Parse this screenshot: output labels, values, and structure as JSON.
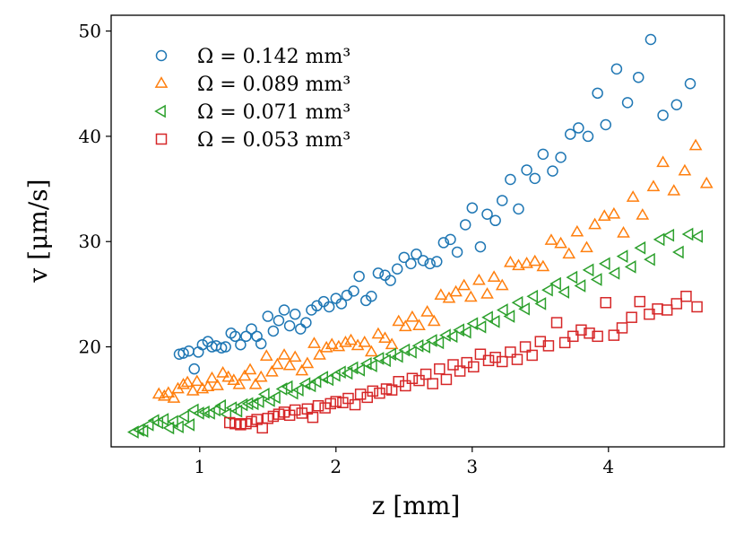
{
  "chart_data": {
    "type": "scatter",
    "title": "",
    "xlabel": "z [mm]",
    "ylabel": "v [μm/s]",
    "xlim": [
      0.35,
      4.85
    ],
    "ylim": [
      10.5,
      51.5
    ],
    "x_ticks": [
      {
        "value": 1,
        "label": "1"
      },
      {
        "value": 2,
        "label": "2"
      },
      {
        "value": 3,
        "label": "3"
      },
      {
        "value": 4,
        "label": "4"
      }
    ],
    "y_ticks": [
      {
        "value": 20,
        "label": "20"
      },
      {
        "value": 30,
        "label": "30"
      },
      {
        "value": 40,
        "label": "40"
      },
      {
        "value": 50,
        "label": "50"
      }
    ],
    "grid": false,
    "legend_position": "top-left",
    "series": [
      {
        "name": "Ω = 0.142 mm³",
        "marker": "circle",
        "color": "#1f77b4",
        "x": [
          0.85,
          0.88,
          0.92,
          0.96,
          0.99,
          1.02,
          1.06,
          1.09,
          1.12,
          1.16,
          1.19,
          1.23,
          1.26,
          1.3,
          1.34,
          1.38,
          1.42,
          1.45,
          1.5,
          1.54,
          1.58,
          1.62,
          1.66,
          1.7,
          1.74,
          1.78,
          1.82,
          1.86,
          1.91,
          1.95,
          2.0,
          2.04,
          2.08,
          2.13,
          2.17,
          2.22,
          2.26,
          2.31,
          2.36,
          2.4,
          2.45,
          2.5,
          2.55,
          2.59,
          2.64,
          2.69,
          2.74,
          2.79,
          2.84,
          2.89,
          2.95,
          3.0,
          3.06,
          3.11,
          3.17,
          3.22,
          3.28,
          3.34,
          3.4,
          3.46,
          3.52,
          3.59,
          3.65,
          3.72,
          3.78,
          3.85,
          3.92,
          3.98,
          4.06,
          4.14,
          4.22,
          4.31,
          4.4,
          4.5,
          4.6
        ],
        "values": [
          19.3,
          19.4,
          19.6,
          17.9,
          19.5,
          20.2,
          20.5,
          20.0,
          20.1,
          19.9,
          20.0,
          21.3,
          21.0,
          20.2,
          21.0,
          21.7,
          21.0,
          20.3,
          22.9,
          21.5,
          22.5,
          23.5,
          22.0,
          23.1,
          21.7,
          22.3,
          23.5,
          23.9,
          24.3,
          23.8,
          24.6,
          24.1,
          24.9,
          25.3,
          26.7,
          24.4,
          24.8,
          27.0,
          26.8,
          26.3,
          27.4,
          28.5,
          27.9,
          28.8,
          28.2,
          27.9,
          28.1,
          29.9,
          30.2,
          29.0,
          31.6,
          33.2,
          29.5,
          32.6,
          32.0,
          33.9,
          35.9,
          33.1,
          36.8,
          36.0,
          38.3,
          36.7,
          38.0,
          40.2,
          40.8,
          40.0,
          44.1,
          41.1,
          46.4,
          43.2,
          45.6,
          49.2,
          42.0,
          43.0,
          45.0
        ]
      },
      {
        "name": "Ω = 0.089 mm³",
        "marker": "triangle-up",
        "color": "#ff7f0e",
        "x": [
          0.7,
          0.74,
          0.77,
          0.81,
          0.84,
          0.88,
          0.91,
          0.95,
          0.98,
          1.02,
          1.06,
          1.09,
          1.13,
          1.17,
          1.21,
          1.25,
          1.29,
          1.33,
          1.37,
          1.41,
          1.45,
          1.49,
          1.53,
          1.57,
          1.62,
          1.66,
          1.7,
          1.75,
          1.79,
          1.84,
          1.88,
          1.93,
          1.97,
          2.02,
          2.07,
          2.11,
          2.16,
          2.21,
          2.26,
          2.31,
          2.36,
          2.41,
          2.46,
          2.51,
          2.56,
          2.61,
          2.67,
          2.72,
          2.77,
          2.83,
          2.88,
          2.94,
          2.99,
          3.05,
          3.11,
          3.16,
          3.22,
          3.28,
          3.34,
          3.4,
          3.46,
          3.52,
          3.58,
          3.65,
          3.71,
          3.77,
          3.84,
          3.9,
          3.97,
          4.04,
          4.11,
          4.18,
          4.25,
          4.33,
          4.4,
          4.48,
          4.56,
          4.64,
          4.72
        ],
        "values": [
          15.5,
          15.3,
          15.6,
          15.1,
          16.0,
          16.4,
          16.6,
          15.8,
          16.7,
          16.0,
          16.2,
          17.0,
          16.3,
          17.5,
          17.1,
          16.8,
          16.4,
          17.2,
          17.8,
          16.4,
          17.1,
          19.1,
          17.6,
          18.3,
          19.2,
          18.2,
          19.0,
          17.7,
          18.4,
          20.3,
          19.2,
          19.9,
          20.2,
          20.0,
          20.4,
          20.6,
          20.1,
          20.4,
          19.5,
          21.2,
          20.8,
          20.2,
          22.4,
          21.9,
          22.8,
          22.0,
          23.3,
          22.4,
          24.9,
          24.6,
          25.2,
          25.8,
          24.7,
          26.3,
          25.0,
          26.6,
          25.8,
          28.0,
          27.7,
          27.9,
          28.1,
          27.6,
          30.1,
          29.8,
          28.8,
          30.9,
          29.4,
          31.6,
          32.4,
          32.6,
          30.8,
          34.2,
          32.5,
          35.2,
          37.5,
          34.8,
          36.7,
          39.1,
          35.5
        ]
      },
      {
        "name": "Ω = 0.071 mm³",
        "marker": "triangle-left",
        "color": "#2ca02c",
        "x": [
          0.52,
          0.56,
          0.59,
          0.63,
          0.67,
          0.7,
          0.74,
          0.78,
          0.81,
          0.85,
          0.89,
          0.93,
          0.96,
          1.0,
          1.04,
          1.08,
          1.12,
          1.16,
          1.2,
          1.24,
          1.28,
          1.32,
          1.36,
          1.4,
          1.44,
          1.48,
          1.52,
          1.56,
          1.61,
          1.65,
          1.69,
          1.73,
          1.78,
          1.82,
          1.86,
          1.91,
          1.95,
          2.0,
          2.04,
          2.09,
          2.13,
          2.18,
          2.23,
          2.27,
          2.32,
          2.37,
          2.41,
          2.46,
          2.51,
          2.56,
          2.61,
          2.66,
          2.71,
          2.76,
          2.81,
          2.86,
          2.91,
          2.96,
          3.01,
          3.07,
          3.12,
          3.17,
          3.23,
          3.28,
          3.34,
          3.39,
          3.45,
          3.51,
          3.56,
          3.62,
          3.68,
          3.74,
          3.8,
          3.86,
          3.92,
          3.98,
          4.05,
          4.11,
          4.17,
          4.24,
          4.31,
          4.38,
          4.45,
          4.52,
          4.59,
          4.66
        ],
        "values": [
          11.9,
          12.1,
          12.0,
          12.6,
          13.0,
          12.8,
          13.1,
          12.3,
          12.9,
          12.4,
          13.4,
          12.6,
          14.0,
          13.7,
          13.8,
          13.7,
          14.0,
          14.4,
          13.6,
          14.2,
          13.9,
          14.5,
          14.6,
          14.6,
          14.8,
          15.5,
          14.9,
          15.2,
          16.0,
          16.2,
          15.6,
          15.9,
          16.5,
          16.3,
          16.7,
          17.1,
          16.9,
          17.3,
          17.6,
          17.5,
          18.0,
          17.8,
          18.4,
          18.2,
          18.9,
          18.7,
          19.3,
          19.1,
          19.7,
          19.5,
          20.1,
          20.0,
          20.6,
          20.4,
          21.1,
          21.0,
          21.6,
          21.4,
          22.2,
          21.9,
          22.8,
          22.4,
          23.5,
          22.9,
          24.2,
          23.6,
          24.8,
          24.1,
          25.4,
          26.0,
          25.2,
          26.6,
          25.8,
          27.3,
          26.4,
          27.9,
          27.0,
          28.6,
          27.6,
          29.4,
          28.3,
          30.2,
          30.6,
          29.0,
          30.7,
          30.5
        ]
      },
      {
        "name": "Ω = 0.053 mm³",
        "marker": "square",
        "color": "#d62728",
        "x": [
          1.22,
          1.26,
          1.3,
          1.34,
          1.38,
          1.42,
          1.46,
          1.5,
          1.54,
          1.58,
          1.62,
          1.66,
          1.7,
          1.75,
          1.79,
          1.83,
          1.87,
          1.92,
          1.96,
          2.0,
          2.05,
          2.09,
          2.14,
          2.18,
          2.23,
          2.27,
          2.32,
          2.37,
          2.41,
          2.46,
          2.51,
          2.56,
          2.61,
          2.66,
          2.71,
          2.76,
          2.81,
          2.86,
          2.91,
          2.96,
          3.01,
          3.06,
          3.12,
          3.17,
          3.22,
          3.28,
          3.33,
          3.39,
          3.44,
          3.5,
          3.56,
          3.62,
          3.68,
          3.74,
          3.8,
          3.86,
          3.92,
          3.98,
          4.04,
          4.1,
          4.17,
          4.23,
          4.3,
          4.36,
          4.43,
          4.5,
          4.57,
          4.65
        ],
        "values": [
          12.8,
          12.7,
          12.6,
          12.7,
          12.9,
          13.1,
          12.3,
          13.2,
          13.4,
          13.6,
          13.8,
          13.5,
          14.0,
          13.7,
          14.1,
          13.3,
          14.4,
          14.2,
          14.6,
          14.8,
          14.7,
          15.1,
          14.5,
          15.5,
          15.2,
          15.8,
          15.6,
          16.0,
          15.9,
          16.7,
          16.3,
          17.0,
          16.8,
          17.4,
          16.5,
          17.9,
          16.9,
          18.3,
          17.7,
          18.5,
          18.1,
          19.3,
          18.7,
          19.0,
          18.6,
          19.5,
          18.8,
          20.0,
          19.2,
          20.5,
          20.1,
          22.3,
          20.4,
          21.0,
          21.6,
          21.3,
          21.0,
          24.2,
          21.1,
          21.8,
          22.8,
          24.3,
          23.1,
          23.6,
          23.5,
          24.1,
          24.8,
          23.8
        ]
      }
    ]
  }
}
